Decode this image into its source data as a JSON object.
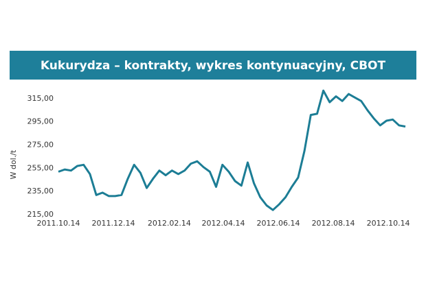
{
  "chart_data": {
    "type": "line",
    "title": "Kukurydza – kontrakty, wykres kontynuacyjny, CBOT",
    "y_label": "W dol./t",
    "color": "#1c7d95",
    "x": [
      "2011.10.14",
      "2011.10.21",
      "2011.10.28",
      "2011.11.04",
      "2011.11.11",
      "2011.11.18",
      "2011.11.25",
      "2011.12.02",
      "2011.12.09",
      "2011.12.16",
      "2011.12.23",
      "2011.12.30",
      "2012.01.06",
      "2012.01.13",
      "2012.01.20",
      "2012.01.27",
      "2012.02.03",
      "2012.02.10",
      "2012.02.17",
      "2012.02.24",
      "2012.03.02",
      "2012.03.09",
      "2012.03.16",
      "2012.03.23",
      "2012.03.30",
      "2012.04.06",
      "2012.04.13",
      "2012.04.20",
      "2012.04.27",
      "2012.05.04",
      "2012.05.11",
      "2012.05.18",
      "2012.05.25",
      "2012.06.01",
      "2012.06.08",
      "2012.06.15",
      "2012.06.22",
      "2012.06.29",
      "2012.07.06",
      "2012.07.13",
      "2012.07.20",
      "2012.07.27",
      "2012.08.03",
      "2012.08.10",
      "2012.08.17",
      "2012.08.24",
      "2012.08.31",
      "2012.09.07",
      "2012.09.14",
      "2012.09.21",
      "2012.09.28",
      "2012.10.05",
      "2012.10.12",
      "2012.10.19",
      "2012.10.26",
      "2012.11.02"
    ],
    "values": [
      252,
      254,
      253,
      257,
      258,
      250,
      232,
      234,
      231,
      231,
      232,
      246,
      258,
      251,
      238,
      246,
      253,
      249,
      253,
      250,
      253,
      259,
      261,
      256,
      252,
      239,
      258,
      252,
      244,
      240,
      260,
      242,
      230,
      223,
      219,
      224,
      230,
      239,
      247,
      270,
      301,
      302,
      322,
      312,
      317,
      313,
      319,
      316,
      313,
      305,
      298,
      292,
      296,
      297,
      292,
      291
    ],
    "xlim": [
      "2011.10.14",
      "2012.11.02"
    ],
    "xticks": [
      "2011.10.14",
      "2011.12.14",
      "2012.02.14",
      "2012.04.14",
      "2012.06.14",
      "2012.08.14",
      "2012.10.14"
    ],
    "ylim": [
      215,
      325
    ],
    "yticks": [
      {
        "value": 215,
        "label": "215,00"
      },
      {
        "value": 235,
        "label": "235,00"
      },
      {
        "value": 255,
        "label": "255,00"
      },
      {
        "value": 275,
        "label": "275,00"
      },
      {
        "value": 295,
        "label": "295,00"
      },
      {
        "value": 315,
        "label": "315,00"
      }
    ],
    "grid": false
  }
}
